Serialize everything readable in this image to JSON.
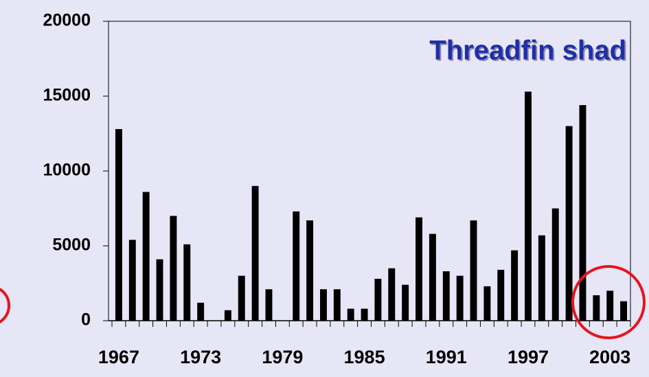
{
  "chart_data": {
    "type": "bar",
    "title": "Threadfin shad",
    "categories": [
      "1967",
      null,
      null,
      null,
      null,
      null,
      "1973",
      null,
      null,
      null,
      null,
      null,
      "1979",
      null,
      null,
      null,
      null,
      null,
      "1985",
      null,
      null,
      null,
      null,
      null,
      "1991",
      null,
      null,
      null,
      null,
      null,
      "1997",
      null,
      null,
      null,
      null,
      null,
      "2003",
      null
    ],
    "values": [
      12800,
      5400,
      8600,
      4100,
      7000,
      5100,
      1200,
      0,
      700,
      3000,
      9000,
      2100,
      0,
      7300,
      6700,
      2100,
      2100,
      800,
      800,
      2800,
      3500,
      2400,
      6900,
      5800,
      3300,
      3000,
      6700,
      2300,
      3400,
      4700,
      15300,
      5700,
      7500,
      13000,
      14400,
      1700,
      2000,
      1300
    ],
    "color": "#000000",
    "ylim": [
      0,
      20000
    ],
    "yticks": [
      0,
      5000,
      10000,
      15000,
      20000
    ],
    "grid": false
  }
}
